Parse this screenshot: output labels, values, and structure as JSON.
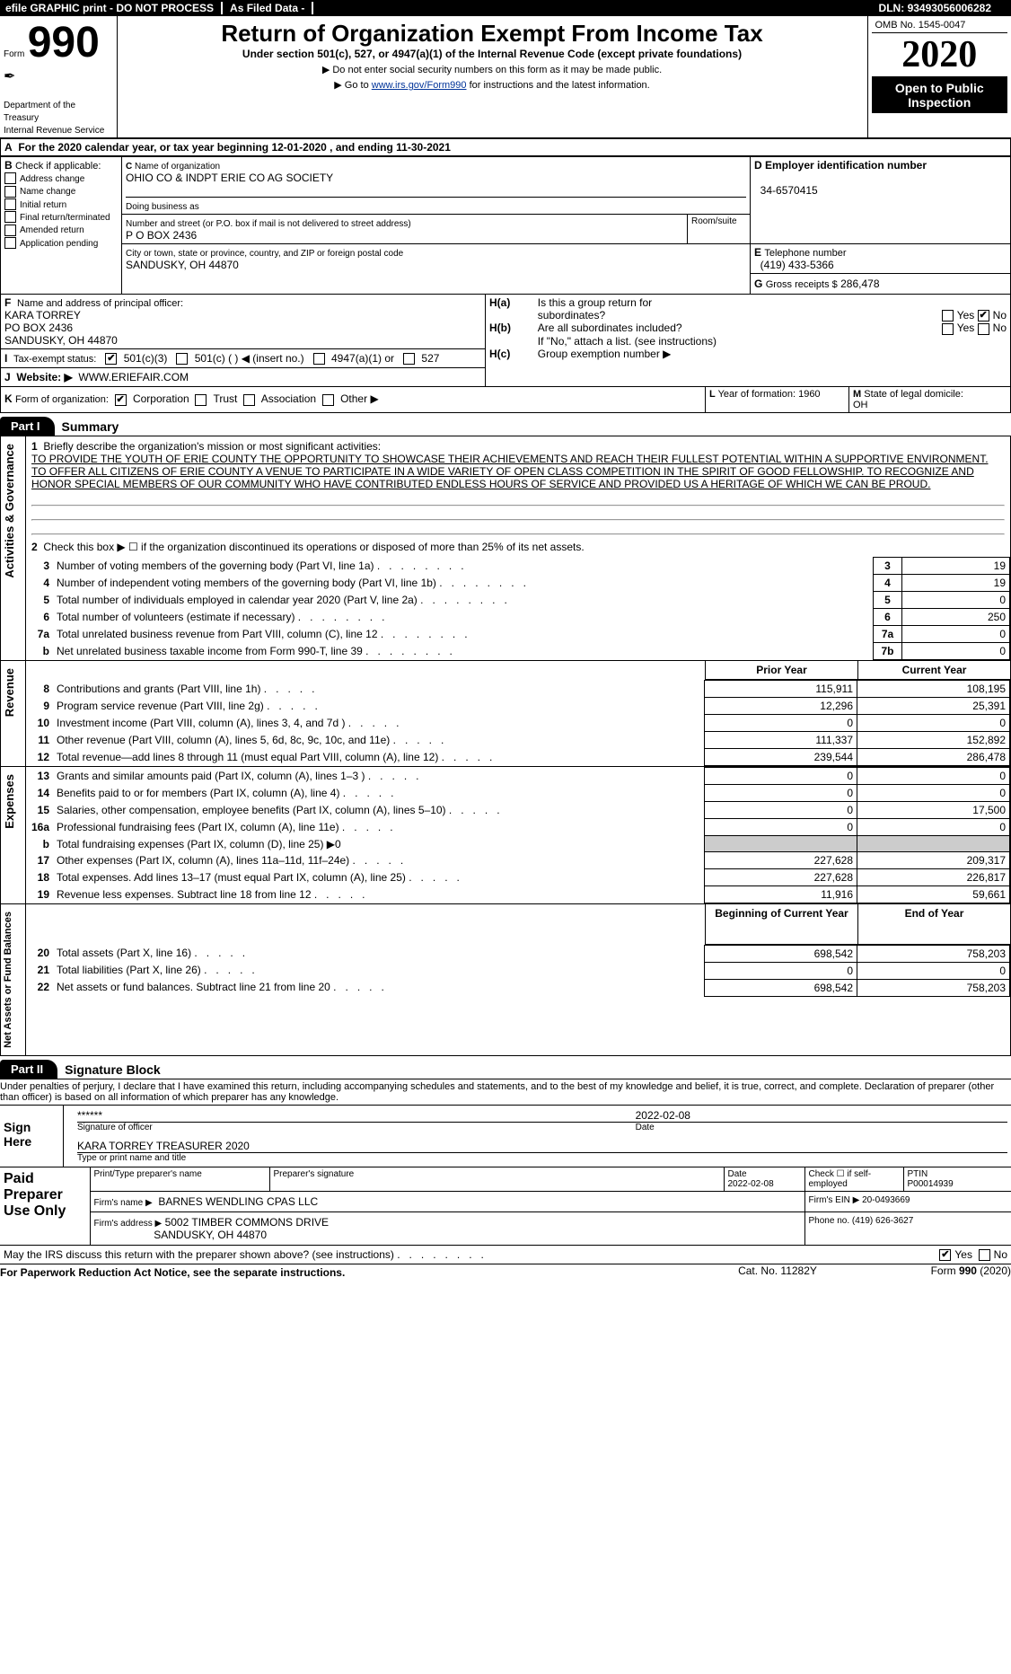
{
  "topbar": {
    "efile": "efile GRAPHIC print - DO NOT PROCESS",
    "asfiled": "As Filed Data -",
    "dln_label": "DLN:",
    "dln": "93493056006282"
  },
  "header": {
    "form_label": "Form",
    "form_num": "990",
    "dept": "Department of the Treasury\nInternal Revenue Service",
    "title": "Return of Organization Exempt From Income Tax",
    "subtitle": "Under section 501(c), 527, or 4947(a)(1) of the Internal Revenue Code (except private foundations)",
    "note1": "▶ Do not enter social security numbers on this form as it may be made public.",
    "note2_pre": "▶ Go to ",
    "note2_link": "www.irs.gov/Form990",
    "note2_post": " for instructions and the latest information.",
    "omb": "OMB No. 1545-0047",
    "year": "2020",
    "open": "Open to Public Inspection"
  },
  "A": {
    "text": "For the 2020 calendar year, or tax year beginning 12-01-2020   , and ending 11-30-2021"
  },
  "B": {
    "label": "Check if applicable:",
    "opts": [
      "Address change",
      "Name change",
      "Initial return",
      "Final return/terminated",
      "Amended return",
      "Application pending"
    ]
  },
  "C": {
    "name_label": "Name of organization",
    "name": "OHIO CO & INDPT ERIE CO AG SOCIETY",
    "dba_label": "Doing business as",
    "addr_label": "Number and street (or P.O. box if mail is not delivered to street address)",
    "room_label": "Room/suite",
    "addr": "P O BOX 2436",
    "city_label": "City or town, state or province, country, and ZIP or foreign postal code",
    "city": "SANDUSKY, OH  44870"
  },
  "D": {
    "label": "Employer identification number",
    "val": "34-6570415"
  },
  "E": {
    "label": "Telephone number",
    "val": "(419) 433-5366"
  },
  "G": {
    "label": "Gross receipts $",
    "val": "286,478"
  },
  "F": {
    "label": "Name and address of principal officer:",
    "line1": "KARA TORREY",
    "line2": "PO BOX 2436",
    "line3": "SANDUSKY, OH  44870"
  },
  "H": {
    "a_label": "Is this a group return for",
    "a_label2": "subordinates?",
    "a_no": true,
    "b_label": "Are all subordinates included?",
    "b_note": "If \"No,\" attach a list. (see instructions)",
    "c_label": "Group exemption number ▶"
  },
  "I": {
    "label": "Tax-exempt status:",
    "c3": true,
    "501c_pre": "501(c) (   ) ◀ (insert no.)",
    "4947": "4947(a)(1) or",
    "527": "527"
  },
  "J": {
    "label": "Website: ▶",
    "val": "WWW.ERIEFAIR.COM"
  },
  "K": {
    "label": "Form of organization:",
    "corp": true,
    "opts": [
      "Corporation",
      "Trust",
      "Association",
      "Other ▶"
    ]
  },
  "L": {
    "label": "Year of formation:",
    "val": "1960"
  },
  "M": {
    "label": "State of legal domicile:",
    "val": "OH"
  },
  "part1": {
    "tab": "Part I",
    "title": "Summary",
    "q1_label": "Briefly describe the organization's mission or most significant activities:",
    "q1_text": "TO PROVIDE THE YOUTH OF ERIE COUNTY THE OPPORTUNITY TO SHOWCASE THEIR ACHIEVEMENTS AND REACH THEIR FULLEST POTENTIAL WITHIN A SUPPORTIVE ENVIRONMENT. TO OFFER ALL CITIZENS OF ERIE COUNTY A VENUE TO PARTICIPATE IN A WIDE VARIETY OF OPEN CLASS COMPETITION IN THE SPIRIT OF GOOD FELLOWSHIP. TO RECOGNIZE AND HONOR SPECIAL MEMBERS OF OUR COMMUNITY WHO HAVE CONTRIBUTED ENDLESS HOURS OF SERVICE AND PROVIDED US A HERITAGE OF WHICH WE CAN BE PROUD.",
    "q2": "Check this box ▶ ☐ if the organization discontinued its operations or disposed of more than 25% of its net assets.",
    "vert_act": "Activities & Governance",
    "vert_rev": "Revenue",
    "vert_exp": "Expenses",
    "vert_net": "Net Assets or Fund Balances",
    "lines_gov": [
      {
        "n": "3",
        "d": "Number of voting members of the governing body (Part VI, line 1a)",
        "c": "3",
        "v": "19"
      },
      {
        "n": "4",
        "d": "Number of independent voting members of the governing body (Part VI, line 1b)",
        "c": "4",
        "v": "19"
      },
      {
        "n": "5",
        "d": "Total number of individuals employed in calendar year 2020 (Part V, line 2a)",
        "c": "5",
        "v": "0"
      },
      {
        "n": "6",
        "d": "Total number of volunteers (estimate if necessary)",
        "c": "6",
        "v": "250"
      },
      {
        "n": "7a",
        "d": "Total unrelated business revenue from Part VIII, column (C), line 12",
        "c": "7a",
        "v": "0"
      },
      {
        "n": "b",
        "d": "Net unrelated business taxable income from Form 990-T, line 39",
        "c": "7b",
        "v": "0"
      }
    ],
    "col_prior": "Prior Year",
    "col_current": "Current Year",
    "rev": [
      {
        "n": "8",
        "d": "Contributions and grants (Part VIII, line 1h)",
        "p": "115,911",
        "c": "108,195"
      },
      {
        "n": "9",
        "d": "Program service revenue (Part VIII, line 2g)",
        "p": "12,296",
        "c": "25,391"
      },
      {
        "n": "10",
        "d": "Investment income (Part VIII, column (A), lines 3, 4, and 7d )",
        "p": "0",
        "c": "0"
      },
      {
        "n": "11",
        "d": "Other revenue (Part VIII, column (A), lines 5, 6d, 8c, 9c, 10c, and 11e)",
        "p": "111,337",
        "c": "152,892"
      },
      {
        "n": "12",
        "d": "Total revenue—add lines 8 through 11 (must equal Part VIII, column (A), line 12)",
        "p": "239,544",
        "c": "286,478"
      }
    ],
    "exp": [
      {
        "n": "13",
        "d": "Grants and similar amounts paid (Part IX, column (A), lines 1–3 )",
        "p": "0",
        "c": "0"
      },
      {
        "n": "14",
        "d": "Benefits paid to or for members (Part IX, column (A), line 4)",
        "p": "0",
        "c": "0"
      },
      {
        "n": "15",
        "d": "Salaries, other compensation, employee benefits (Part IX, column (A), lines 5–10)",
        "p": "0",
        "c": "17,500"
      },
      {
        "n": "16a",
        "d": "Professional fundraising fees (Part IX, column (A), line 11e)",
        "p": "0",
        "c": "0"
      },
      {
        "n": "b",
        "d": "Total fundraising expenses (Part IX, column (D), line 25) ▶0",
        "p": "",
        "c": "",
        "shade": true
      },
      {
        "n": "17",
        "d": "Other expenses (Part IX, column (A), lines 11a–11d, 11f–24e)",
        "p": "227,628",
        "c": "209,317"
      },
      {
        "n": "18",
        "d": "Total expenses. Add lines 13–17 (must equal Part IX, column (A), line 25)",
        "p": "227,628",
        "c": "226,817"
      },
      {
        "n": "19",
        "d": "Revenue less expenses. Subtract line 18 from line 12",
        "p": "11,916",
        "c": "59,661"
      }
    ],
    "col_beg": "Beginning of Current Year",
    "col_end": "End of Year",
    "net": [
      {
        "n": "20",
        "d": "Total assets (Part X, line 16)",
        "p": "698,542",
        "c": "758,203"
      },
      {
        "n": "21",
        "d": "Total liabilities (Part X, line 26)",
        "p": "0",
        "c": "0"
      },
      {
        "n": "22",
        "d": "Net assets or fund balances. Subtract line 21 from line 20",
        "p": "698,542",
        "c": "758,203"
      }
    ]
  },
  "part2": {
    "tab": "Part II",
    "title": "Signature Block",
    "decl": "Under penalties of perjury, I declare that I have examined this return, including accompanying schedules and statements, and to the best of my knowledge and belief, it is true, correct, and complete. Declaration of preparer (other than officer) is based on all information of which preparer has any knowledge.",
    "sign_here": "Sign Here",
    "sig_stars": "******",
    "sig_date": "2022-02-08",
    "sig_label": "Signature of officer",
    "date_label": "Date",
    "officer": "KARA TORREY TREASURER 2020",
    "type_label": "Type or print name and title",
    "paid": "Paid Preparer Use Only",
    "prep_name_label": "Print/Type preparer's name",
    "prep_sig_label": "Preparer's signature",
    "prep_date_label": "Date",
    "prep_date": "2022-02-08",
    "self_emp": "Check ☐ if self-employed",
    "ptin_label": "PTIN",
    "ptin": "P00014939",
    "firm_name_label": "Firm's name    ▶",
    "firm_name": "BARNES WENDLING CPAS LLC",
    "firm_ein_label": "Firm's EIN ▶",
    "firm_ein": "20-0493669",
    "firm_addr_label": "Firm's address ▶",
    "firm_addr1": "5002 TIMBER COMMONS DRIVE",
    "firm_addr2": "SANDUSKY, OH  44870",
    "phone_label": "Phone no.",
    "phone": "(419) 626-3627",
    "discuss": "May the IRS discuss this return with the preparer shown above? (see instructions)",
    "discuss_yes": true,
    "pra": "For Paperwork Reduction Act Notice, see the separate instructions.",
    "cat": "Cat. No. 11282Y",
    "formfoot": "Form 990 (2020)"
  }
}
